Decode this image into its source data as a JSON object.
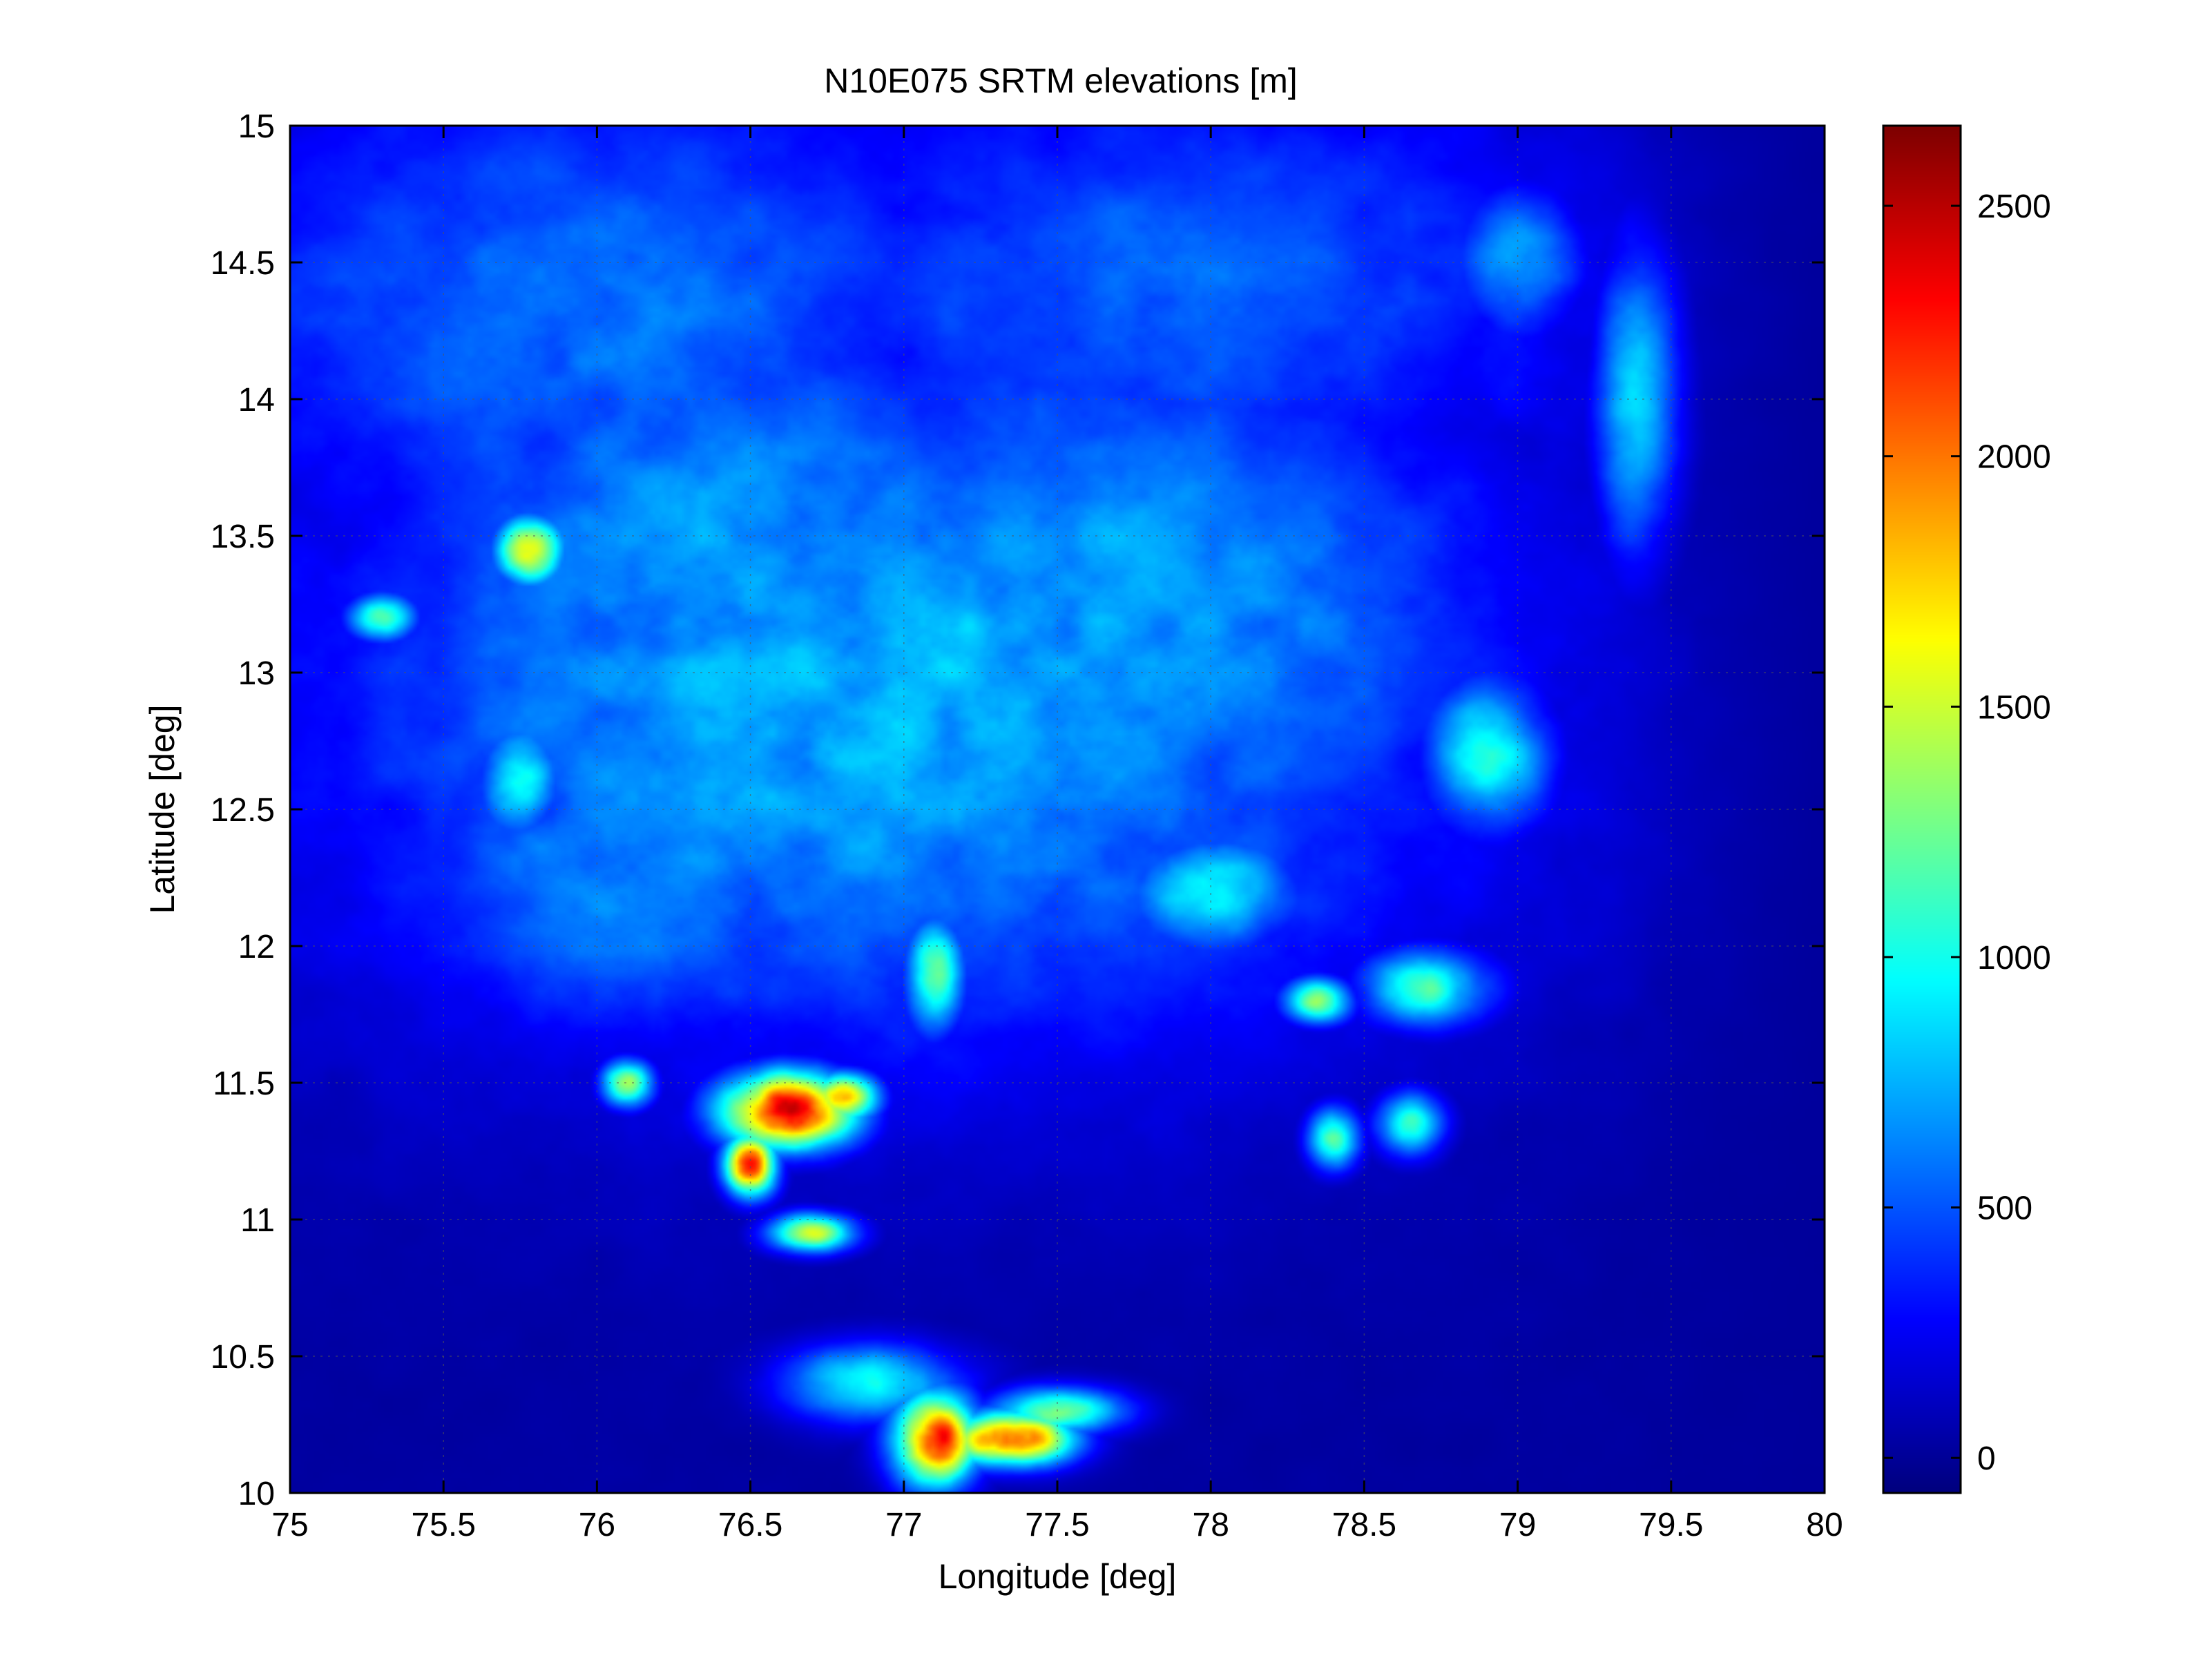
{
  "chart_data": {
    "type": "heatmap",
    "title": "N10E075 SRTM elevations [m]",
    "xlabel": "Longitude [deg]",
    "ylabel": "Latitude [deg]",
    "xlim": [
      75,
      80
    ],
    "ylim": [
      10,
      15
    ],
    "xticks": [
      75,
      75.5,
      76,
      76.5,
      77,
      77.5,
      78,
      78.5,
      79,
      79.5,
      80
    ],
    "yticks": [
      10,
      10.5,
      11,
      11.5,
      12,
      12.5,
      13,
      13.5,
      14,
      14.5,
      15
    ],
    "xtick_labels": [
      "75",
      "75.5",
      "76",
      "76.5",
      "77",
      "77.5",
      "78",
      "78.5",
      "79",
      "79.5",
      "80"
    ],
    "ytick_labels": [
      "10",
      "10.5",
      "11",
      "11.5",
      "12",
      "12.5",
      "13",
      "13.5",
      "14",
      "14.5",
      "15"
    ],
    "grid": true,
    "colormap": "jet",
    "colorbar": {
      "clim": [
        -70,
        2660
      ],
      "ticks": [
        0,
        500,
        1000,
        1500,
        2000,
        2500
      ],
      "tick_labels": [
        "0",
        "500",
        "1000",
        "1500",
        "2000",
        "2500"
      ]
    },
    "features": [
      {
        "lon": 76.95,
        "lat": 12.9,
        "elev": 760,
        "s_lon": 1.35,
        "s_lat": 0.9
      },
      {
        "lon": 76.4,
        "lat": 13.4,
        "elev": 680,
        "s_lon": 0.8,
        "s_lat": 0.8
      },
      {
        "lon": 77.6,
        "lat": 13.2,
        "elev": 700,
        "s_lon": 1.0,
        "s_lat": 0.8
      },
      {
        "lon": 76.2,
        "lat": 12.3,
        "elev": 620,
        "s_lon": 0.7,
        "s_lat": 0.5
      },
      {
        "lon": 78.3,
        "lat": 13.3,
        "elev": 560,
        "s_lon": 0.5,
        "s_lat": 0.6
      },
      {
        "lon": 76.0,
        "lat": 14.3,
        "elev": 560,
        "s_lon": 1.0,
        "s_lat": 0.7
      },
      {
        "lon": 77.9,
        "lat": 14.4,
        "elev": 520,
        "s_lon": 1.0,
        "s_lat": 0.6
      },
      {
        "lon": 75.78,
        "lat": 13.45,
        "elev": 1550,
        "s_lon": 0.08,
        "s_lat": 0.09
      },
      {
        "lon": 75.3,
        "lat": 13.2,
        "elev": 1300,
        "s_lon": 0.08,
        "s_lat": 0.06
      },
      {
        "lon": 75.75,
        "lat": 12.6,
        "elev": 1000,
        "s_lon": 0.1,
        "s_lat": 0.15
      },
      {
        "lon": 76.1,
        "lat": 11.5,
        "elev": 1500,
        "s_lon": 0.06,
        "s_lat": 0.06
      },
      {
        "lon": 76.62,
        "lat": 11.4,
        "elev": 2400,
        "s_lon": 0.15,
        "s_lat": 0.1
      },
      {
        "lon": 76.5,
        "lat": 11.2,
        "elev": 2200,
        "s_lon": 0.06,
        "s_lat": 0.08
      },
      {
        "lon": 76.8,
        "lat": 11.45,
        "elev": 1900,
        "s_lon": 0.08,
        "s_lat": 0.06
      },
      {
        "lon": 76.7,
        "lat": 10.95,
        "elev": 1500,
        "s_lon": 0.1,
        "s_lat": 0.05
      },
      {
        "lon": 77.1,
        "lat": 11.9,
        "elev": 1250,
        "s_lon": 0.07,
        "s_lat": 0.15
      },
      {
        "lon": 77.1,
        "lat": 10.2,
        "elev": 2200,
        "s_lon": 0.1,
        "s_lat": 0.12
      },
      {
        "lon": 77.35,
        "lat": 10.2,
        "elev": 2300,
        "s_lon": 0.14,
        "s_lat": 0.07
      },
      {
        "lon": 77.5,
        "lat": 10.3,
        "elev": 1400,
        "s_lon": 0.15,
        "s_lat": 0.06
      },
      {
        "lon": 76.9,
        "lat": 10.4,
        "elev": 1000,
        "s_lon": 0.2,
        "s_lat": 0.1
      },
      {
        "lon": 78.35,
        "lat": 11.8,
        "elev": 1200,
        "s_lon": 0.08,
        "s_lat": 0.06
      },
      {
        "lon": 78.7,
        "lat": 11.85,
        "elev": 1100,
        "s_lon": 0.15,
        "s_lat": 0.1
      },
      {
        "lon": 78.4,
        "lat": 11.3,
        "elev": 1100,
        "s_lon": 0.06,
        "s_lat": 0.08
      },
      {
        "lon": 78.65,
        "lat": 11.35,
        "elev": 1000,
        "s_lon": 0.08,
        "s_lat": 0.08
      },
      {
        "lon": 78.9,
        "lat": 12.7,
        "elev": 950,
        "s_lon": 0.15,
        "s_lat": 0.2
      },
      {
        "lon": 79.4,
        "lat": 14.0,
        "elev": 900,
        "s_lon": 0.1,
        "s_lat": 0.4
      },
      {
        "lon": 79.0,
        "lat": 14.5,
        "elev": 700,
        "s_lon": 0.15,
        "s_lat": 0.2
      },
      {
        "lon": 78.0,
        "lat": 12.2,
        "elev": 950,
        "s_lon": 0.2,
        "s_lat": 0.15
      },
      {
        "lon": 77.3,
        "lat": 12.4,
        "elev": 650,
        "s_lon": 0.3,
        "s_lat": 0.2
      }
    ]
  }
}
